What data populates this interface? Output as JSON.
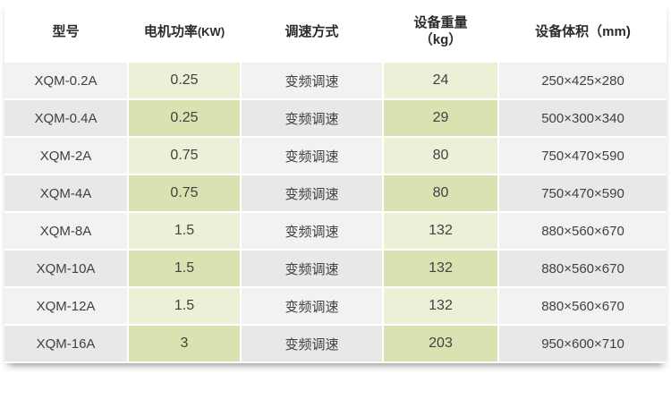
{
  "table": {
    "title_semantics": "equipment-specification-table",
    "columns": [
      {
        "key": "model",
        "label": "型号"
      },
      {
        "key": "power",
        "label": "电机功率",
        "suffix": "(KW)"
      },
      {
        "key": "speed-mode",
        "label": "调速方式"
      },
      {
        "key": "weight",
        "label": "设备重量",
        "label_line2": "（kg）"
      },
      {
        "key": "volume",
        "label": "设备体积（mm)"
      }
    ],
    "rows": [
      [
        "XQM-0.2A",
        "0.25",
        "变频调速",
        "24",
        "250×425×280"
      ],
      [
        "XQM-0.4A",
        "0.25",
        "变频调速",
        "29",
        "500×300×340"
      ],
      [
        "XQM-2A",
        "0.75",
        "变频调速",
        "80",
        "750×470×590"
      ],
      [
        "XQM-4A",
        "0.75",
        "变频调速",
        "80",
        "750×470×590"
      ],
      [
        "XQM-8A",
        "1.5",
        "变频调速",
        "132",
        "880×560×670"
      ],
      [
        "XQM-10A",
        "1.5",
        "变频调速",
        "132",
        "880×560×670"
      ],
      [
        "XQM-12A",
        "1.5",
        "变频调速",
        "132",
        "880×560×670"
      ],
      [
        "XQM-16A",
        "3",
        "变频调速",
        "203",
        "950×600×710"
      ]
    ],
    "colors": {
      "row_light": "#f2f2f1",
      "row_dark": "#e8e8e6",
      "green_light": "#edf0d7",
      "green_dark": "#d9e3b2",
      "separator": "#ffffff",
      "header_text": "#2b2b30",
      "cell_text": "#414144"
    }
  }
}
